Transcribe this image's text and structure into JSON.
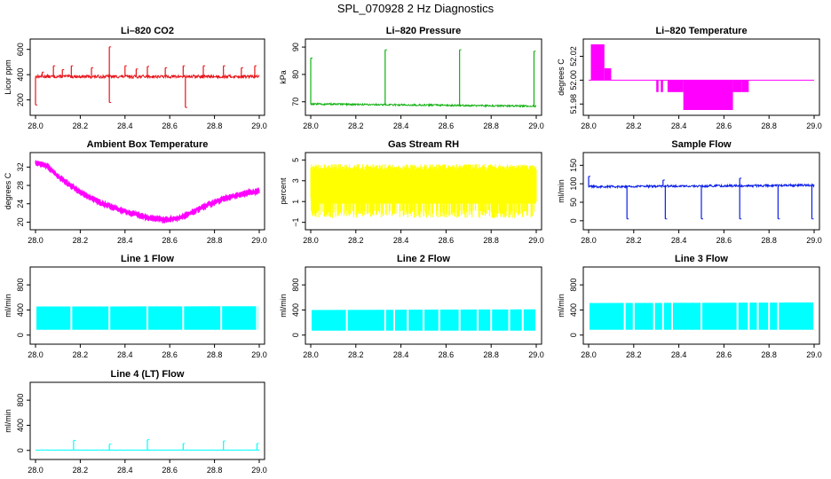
{
  "figure": {
    "suptitle": "SPL_070928  2 Hz Diagnostics"
  },
  "chart_data": [
    {
      "id": "co2",
      "type": "line",
      "title": "Li–820 CO2",
      "ylabel": "Licor ppm",
      "xlim": [
        28.0,
        29.0
      ],
      "ylim": [
        120,
        640
      ],
      "xticks": [
        28.0,
        28.2,
        28.4,
        28.6,
        28.8,
        29.0
      ],
      "xtick_labels": [
        "28.0",
        "28.2",
        "28.4",
        "28.6",
        "28.8",
        "29.0"
      ],
      "yticks": [
        200,
        400,
        600
      ],
      "ytick_labels": [
        "200",
        "400",
        "600"
      ],
      "color": "#e8141a",
      "style": "noise",
      "base": 385,
      "noise": 12,
      "spikes": [
        [
          28.08,
          470
        ],
        [
          28.16,
          470
        ],
        [
          28.33,
          620
        ],
        [
          28.33,
          180
        ],
        [
          28.4,
          470
        ],
        [
          28.5,
          465
        ],
        [
          28.66,
          470
        ],
        [
          28.67,
          140
        ],
        [
          28.75,
          470
        ],
        [
          28.84,
          470
        ],
        [
          28.98,
          470
        ],
        [
          28.0,
          160
        ],
        [
          28.03,
          420
        ],
        [
          28.12,
          440
        ],
        [
          28.25,
          455
        ],
        [
          28.45,
          445
        ],
        [
          28.58,
          455
        ],
        [
          28.92,
          455
        ]
      ]
    },
    {
      "id": "pressure",
      "type": "line",
      "title": "Li–820 Pressure",
      "ylabel": "kPa",
      "xlim": [
        28.0,
        29.0
      ],
      "ylim": [
        67,
        91
      ],
      "xticks": [
        28.0,
        28.2,
        28.4,
        28.6,
        28.8,
        29.0
      ],
      "xtick_labels": [
        "28.0",
        "28.2",
        "28.4",
        "28.6",
        "28.8",
        "29.0"
      ],
      "yticks": [
        70,
        80,
        90
      ],
      "ytick_labels": [
        "70",
        "80",
        "90"
      ],
      "color": "#10b010",
      "style": "noise",
      "base": 69.2,
      "noise": 0.3,
      "trend": -0.8,
      "spikes": [
        [
          28.0,
          86
        ],
        [
          28.33,
          89
        ],
        [
          28.66,
          89
        ],
        [
          28.99,
          88.5
        ]
      ]
    },
    {
      "id": "licor_temp",
      "type": "line",
      "title": "Li–820 Temperature",
      "ylabel": "degrees C",
      "xlim": [
        28.0,
        29.0
      ],
      "ylim": [
        51.975,
        52.03
      ],
      "xticks": [
        28.0,
        28.2,
        28.4,
        28.6,
        28.8,
        29.0
      ],
      "xtick_labels": [
        "28.0",
        "28.2",
        "28.4",
        "28.6",
        "28.8",
        "29.0"
      ],
      "yticks": [
        51.98,
        52.0,
        52.02
      ],
      "ytick_labels": [
        "51.98",
        "52.00",
        "52.02"
      ],
      "color": "#ff00ff",
      "style": "step",
      "base": 52.0,
      "bands": [
        [
          28.01,
          28.07,
          52.0,
          52.03
        ],
        [
          28.07,
          28.1,
          52.0,
          52.01
        ],
        [
          28.3,
          28.31,
          51.99,
          52.0
        ],
        [
          28.32,
          28.33,
          51.99,
          52.0
        ],
        [
          28.35,
          28.37,
          51.99,
          52.0
        ],
        [
          28.37,
          28.42,
          51.99,
          52.0
        ],
        [
          28.42,
          28.64,
          51.975,
          52.0
        ],
        [
          28.64,
          28.68,
          51.99,
          52.0
        ],
        [
          28.68,
          28.71,
          51.99,
          52.0
        ]
      ]
    },
    {
      "id": "box_temp",
      "type": "line",
      "title": "Ambient Box Temperature",
      "ylabel": "degrees C",
      "xlim": [
        28.0,
        29.0
      ],
      "ylim": [
        19.5,
        34
      ],
      "xticks": [
        28.0,
        28.2,
        28.4,
        28.6,
        28.8,
        29.0
      ],
      "xtick_labels": [
        "28.0",
        "28.2",
        "28.4",
        "28.6",
        "28.8",
        "29.0"
      ],
      "yticks": [
        20,
        24,
        28,
        32
      ],
      "ytick_labels": [
        "20",
        "24",
        "28",
        "32"
      ],
      "color": "#ff00ff",
      "style": "curve",
      "noise": 0.7,
      "curve": [
        [
          28.0,
          33
        ],
        [
          28.05,
          32.3
        ],
        [
          28.1,
          30
        ],
        [
          28.2,
          26.5
        ],
        [
          28.3,
          24
        ],
        [
          28.4,
          22.3
        ],
        [
          28.5,
          21
        ],
        [
          28.58,
          20.5
        ],
        [
          28.65,
          21
        ],
        [
          28.75,
          23.3
        ],
        [
          28.85,
          25.2
        ],
        [
          28.95,
          26.4
        ],
        [
          29.0,
          26.8
        ]
      ]
    },
    {
      "id": "gas_rh",
      "type": "line",
      "title": "Gas Stream RH",
      "ylabel": "percent",
      "xlim": [
        28.0,
        29.0
      ],
      "ylim": [
        -1.2,
        5.2
      ],
      "xticks": [
        28.0,
        28.2,
        28.4,
        28.6,
        28.8,
        29.0
      ],
      "xtick_labels": [
        "28.0",
        "28.2",
        "28.4",
        "28.6",
        "28.8",
        "29.0"
      ],
      "yticks": [
        -1,
        1,
        3,
        5
      ],
      "ytick_labels": [
        "−1",
        "1",
        "3",
        "5"
      ],
      "color": "#ffff00",
      "style": "fill",
      "low": -0.6,
      "high": 4.6,
      "core_low": 0.8,
      "core_high": 3.9
    },
    {
      "id": "sample_flow",
      "type": "line",
      "title": "Sample Flow",
      "ylabel": "ml/min",
      "xlim": [
        28.0,
        29.0
      ],
      "ylim": [
        -10,
        170
      ],
      "xticks": [
        28.0,
        28.2,
        28.4,
        28.6,
        28.8,
        29.0
      ],
      "xtick_labels": [
        "28.0",
        "28.2",
        "28.4",
        "28.6",
        "28.8",
        "29.0"
      ],
      "yticks": [
        0,
        50,
        100,
        150
      ],
      "ytick_labels": [
        "0",
        "50",
        "100",
        "150"
      ],
      "color": "#0a1ee8",
      "style": "noise",
      "base": 92,
      "noise": 3,
      "trend": 4,
      "spikes": [
        [
          28.0,
          120
        ],
        [
          28.17,
          5
        ],
        [
          28.34,
          5
        ],
        [
          28.5,
          5
        ],
        [
          28.67,
          5
        ],
        [
          28.84,
          5
        ],
        [
          28.99,
          5
        ],
        [
          28.33,
          110
        ],
        [
          28.67,
          115
        ]
      ]
    },
    {
      "id": "line1_flow",
      "type": "line",
      "title": "Line 1 Flow",
      "ylabel": "ml/min",
      "xlim": [
        28.0,
        29.0
      ],
      "ylim": [
        -60,
        1000
      ],
      "xticks": [
        28.0,
        28.2,
        28.4,
        28.6,
        28.8,
        29.0
      ],
      "xtick_labels": [
        "28.0",
        "28.2",
        "28.4",
        "28.6",
        "28.8",
        "29.0"
      ],
      "yticks": [
        0,
        400,
        800
      ],
      "ytick_labels": [
        "0",
        "400",
        "800"
      ],
      "color": "#00ffff",
      "style": "flow",
      "low": 85,
      "high": 455,
      "high_end": 460,
      "gaps": [
        28.16,
        28.33,
        28.5,
        28.66,
        28.83,
        28.99
      ]
    },
    {
      "id": "line2_flow",
      "type": "line",
      "title": "Line 2 Flow",
      "ylabel": "ml/min",
      "xlim": [
        28.0,
        29.0
      ],
      "ylim": [
        -60,
        1000
      ],
      "xticks": [
        28.0,
        28.2,
        28.4,
        28.6,
        28.8,
        29.0
      ],
      "xtick_labels": [
        "28.0",
        "28.2",
        "28.4",
        "28.6",
        "28.8",
        "29.0"
      ],
      "yticks": [
        0,
        400,
        800
      ],
      "ytick_labels": [
        "0",
        "400",
        "800"
      ],
      "color": "#00ffff",
      "style": "flow",
      "low": 70,
      "high": 400,
      "high_end": 410,
      "gaps": [
        28.16,
        28.33,
        28.37,
        28.43,
        28.5,
        28.57,
        28.66,
        28.74,
        28.8,
        28.88,
        28.94
      ]
    },
    {
      "id": "line3_flow",
      "type": "line",
      "title": "Line 3 Flow",
      "ylabel": "ml/min",
      "xlim": [
        28.0,
        29.0
      ],
      "ylim": [
        -60,
        1000
      ],
      "xticks": [
        28.0,
        28.2,
        28.4,
        28.6,
        28.8,
        29.0
      ],
      "xtick_labels": [
        "28.0",
        "28.2",
        "28.4",
        "28.6",
        "28.8",
        "29.0"
      ],
      "yticks": [
        0,
        400,
        800
      ],
      "ytick_labels": [
        "0",
        "400",
        "800"
      ],
      "color": "#00ffff",
      "style": "flow",
      "low": 85,
      "high": 510,
      "high_end": 520,
      "gaps": [
        28.16,
        28.2,
        28.29,
        28.33,
        28.37,
        28.5,
        28.66,
        28.71,
        28.75,
        28.8,
        28.84
      ]
    },
    {
      "id": "line4_flow",
      "type": "line",
      "title": "Line 4 (LT) Flow",
      "ylabel": "ml/min",
      "xlim": [
        28.0,
        29.0
      ],
      "ylim": [
        -60,
        1000
      ],
      "xticks": [
        28.0,
        28.2,
        28.4,
        28.6,
        28.8,
        29.0
      ],
      "xtick_labels": [
        "28.0",
        "28.2",
        "28.4",
        "28.6",
        "28.8",
        "29.0"
      ],
      "yticks": [
        0,
        400,
        800
      ],
      "ytick_labels": [
        "0",
        "400",
        "800"
      ],
      "color": "#00ffff",
      "style": "noise",
      "base": 5,
      "noise": 2,
      "spikes": [
        [
          28.17,
          160
        ],
        [
          28.33,
          100
        ],
        [
          28.5,
          170
        ],
        [
          28.66,
          110
        ],
        [
          28.84,
          150
        ],
        [
          28.99,
          110
        ]
      ]
    }
  ]
}
